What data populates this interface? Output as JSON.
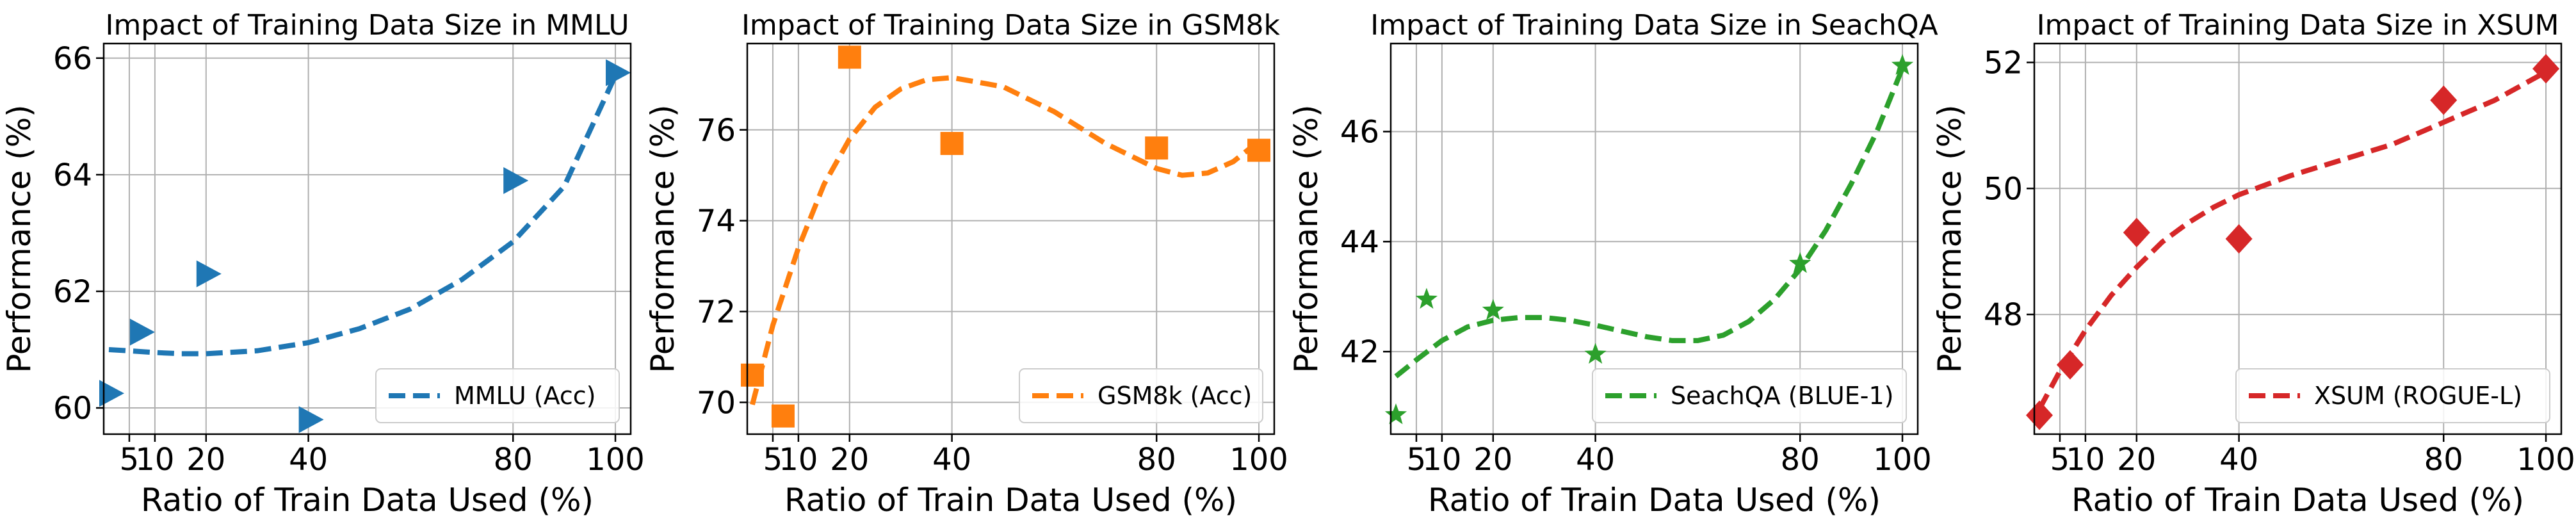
{
  "chart_data": [
    {
      "type": "scatter",
      "title": "Impact of Training Data Size in MMLU",
      "xlabel": "Ratio of Train Data Used (%)",
      "ylabel": "Performance (%)",
      "xlim": [
        0,
        103
      ],
      "ylim": [
        59.55,
        66.25
      ],
      "xticks": [
        5,
        10,
        20,
        40,
        80,
        100
      ],
      "xticklabels": [
        "5",
        "10",
        "20",
        "40",
        "80",
        "100"
      ],
      "yticks": [
        60,
        62,
        64,
        66
      ],
      "grid": true,
      "legend_position": "lower-right",
      "color": "#1f77b4",
      "marker": "triangle-right",
      "series": [
        {
          "name": "MMLU (Acc)",
          "points": [
            [
              1,
              60.25
            ],
            [
              7,
              61.3
            ],
            [
              20,
              62.3
            ],
            [
              40,
              59.8
            ],
            [
              80,
              63.9
            ],
            [
              100,
              65.75
            ]
          ],
          "fit": [
            [
              1,
              61.0
            ],
            [
              5,
              60.98
            ],
            [
              10,
              60.95
            ],
            [
              15,
              60.93
            ],
            [
              20,
              60.93
            ],
            [
              30,
              60.98
            ],
            [
              40,
              61.12
            ],
            [
              50,
              61.36
            ],
            [
              60,
              61.7
            ],
            [
              70,
              62.2
            ],
            [
              80,
              62.85
            ],
            [
              90,
              63.8
            ],
            [
              100,
              65.7
            ]
          ]
        }
      ]
    },
    {
      "type": "scatter",
      "title": "Impact of Training Data Size in GSM8k",
      "xlabel": "Ratio of Train Data Used (%)",
      "ylabel": "Performance (%)",
      "xlim": [
        0,
        103
      ],
      "ylim": [
        69.3,
        77.9
      ],
      "xticks": [
        5,
        10,
        20,
        40,
        80,
        100
      ],
      "xticklabels": [
        "5",
        "10",
        "20",
        "40",
        "80",
        "100"
      ],
      "yticks": [
        70,
        72,
        74,
        76
      ],
      "grid": true,
      "legend_position": "lower-right",
      "color": "#ff7f0e",
      "marker": "square",
      "series": [
        {
          "name": "GSM8k (Acc)",
          "points": [
            [
              1,
              70.6
            ],
            [
              7,
              69.7
            ],
            [
              20,
              77.6
            ],
            [
              40,
              75.7
            ],
            [
              80,
              75.6
            ],
            [
              100,
              75.55
            ]
          ],
          "fit": [
            [
              1,
              69.95
            ],
            [
              5,
              71.7
            ],
            [
              10,
              73.4
            ],
            [
              15,
              74.8
            ],
            [
              20,
              75.8
            ],
            [
              25,
              76.5
            ],
            [
              30,
              76.9
            ],
            [
              35,
              77.1
            ],
            [
              40,
              77.15
            ],
            [
              50,
              76.95
            ],
            [
              60,
              76.4
            ],
            [
              70,
              75.7
            ],
            [
              80,
              75.15
            ],
            [
              85,
              75.0
            ],
            [
              90,
              75.05
            ],
            [
              95,
              75.3
            ],
            [
              100,
              75.75
            ]
          ]
        }
      ]
    },
    {
      "type": "scatter",
      "title": "Impact of Training Data Size in SeachQA",
      "xlabel": "Ratio of Train Data Used (%)",
      "ylabel": "Performance (%)",
      "xlim": [
        0,
        103
      ],
      "ylim": [
        40.5,
        47.6
      ],
      "xticks": [
        5,
        10,
        20,
        40,
        80,
        100
      ],
      "xticklabels": [
        "5",
        "10",
        "20",
        "40",
        "80",
        "100"
      ],
      "yticks": [
        42,
        44,
        46
      ],
      "grid": true,
      "legend_position": "lower-right",
      "color": "#2ca02c",
      "marker": "star",
      "series": [
        {
          "name": "SeachQA (BLUE-1)",
          "points": [
            [
              1,
              40.85
            ],
            [
              7,
              42.95
            ],
            [
              20,
              42.75
            ],
            [
              40,
              41.95
            ],
            [
              80,
              43.6
            ],
            [
              100,
              47.2
            ]
          ],
          "fit": [
            [
              1,
              41.55
            ],
            [
              5,
              41.85
            ],
            [
              10,
              42.2
            ],
            [
              15,
              42.45
            ],
            [
              20,
              42.57
            ],
            [
              25,
              42.62
            ],
            [
              30,
              42.62
            ],
            [
              35,
              42.57
            ],
            [
              40,
              42.48
            ],
            [
              50,
              42.27
            ],
            [
              55,
              42.2
            ],
            [
              60,
              42.2
            ],
            [
              65,
              42.3
            ],
            [
              70,
              42.55
            ],
            [
              75,
              42.95
            ],
            [
              80,
              43.5
            ],
            [
              85,
              44.2
            ],
            [
              90,
              45.05
            ],
            [
              95,
              46.0
            ],
            [
              100,
              47.15
            ]
          ]
        }
      ]
    },
    {
      "type": "scatter",
      "title": "Impact of Training Data Size in XSUM",
      "xlabel": "Ratio of Train Data Used (%)",
      "ylabel": "Performance (%)",
      "xlim": [
        0,
        103
      ],
      "ylim": [
        46.1,
        52.3
      ],
      "xticks": [
        5,
        10,
        20,
        40,
        80,
        100
      ],
      "xticklabels": [
        "5",
        "10",
        "20",
        "40",
        "80",
        "100"
      ],
      "yticks": [
        48,
        50,
        52
      ],
      "grid": true,
      "legend_position": "lower-right",
      "color": "#d62728",
      "marker": "diamond",
      "series": [
        {
          "name": "XSUM (ROGUE-L)",
          "points": [
            [
              1,
              46.4
            ],
            [
              7,
              47.2
            ],
            [
              20,
              49.3
            ],
            [
              40,
              49.2
            ],
            [
              80,
              51.4
            ],
            [
              100,
              51.9
            ]
          ],
          "fit": [
            [
              1,
              46.5
            ],
            [
              5,
              47.1
            ],
            [
              10,
              47.75
            ],
            [
              15,
              48.3
            ],
            [
              20,
              48.75
            ],
            [
              25,
              49.15
            ],
            [
              30,
              49.45
            ],
            [
              35,
              49.7
            ],
            [
              40,
              49.9
            ],
            [
              50,
              50.2
            ],
            [
              60,
              50.45
            ],
            [
              70,
              50.7
            ],
            [
              80,
              51.05
            ],
            [
              90,
              51.4
            ],
            [
              100,
              51.85
            ]
          ]
        }
      ]
    }
  ]
}
